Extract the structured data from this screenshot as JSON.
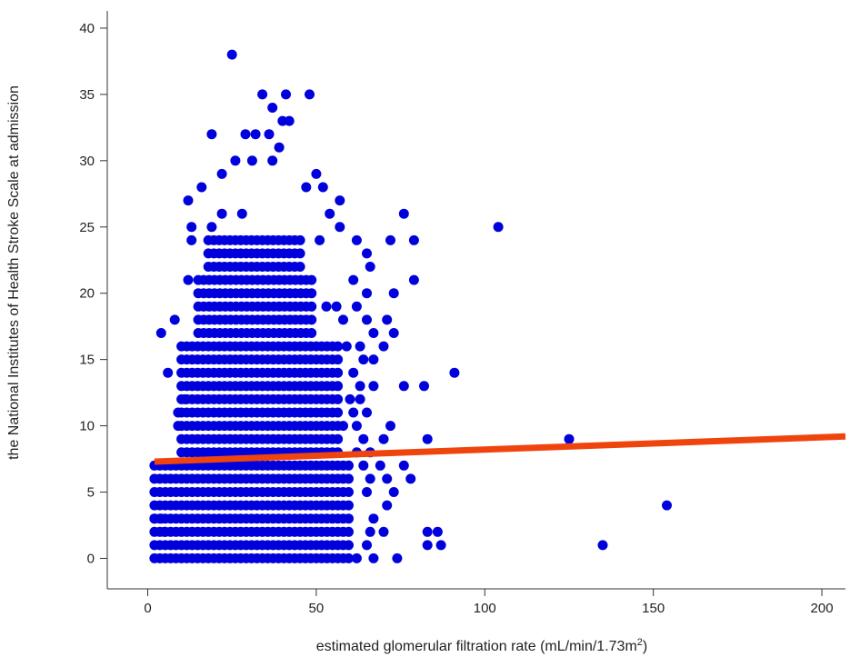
{
  "chart_data": {
    "type": "scatter",
    "title": "",
    "xlabel_main": "estimated glomerular filtration rate (mL/min/1.73m",
    "xlabel_sup": "2",
    "xlabel_tail": ")",
    "ylabel": "the National Institutes of Health Stroke Scale at admission",
    "xlim": [
      -12,
      207
    ],
    "ylim": [
      -2.3,
      41.3
    ],
    "xticks": [
      0,
      50,
      100,
      150,
      200
    ],
    "yticks": [
      0,
      5,
      10,
      15,
      20,
      25,
      30,
      35,
      40
    ],
    "grid": false,
    "point_color": "#0000dd",
    "line_color": "#f0440e",
    "dense_band": {
      "columns": [
        {
          "x_min": 2,
          "x_max": 60,
          "y_values": [
            0,
            1,
            2,
            3,
            4,
            5,
            6,
            7
          ]
        },
        {
          "x_min": 10,
          "x_max": 57,
          "y_values": [
            8,
            9,
            10,
            11,
            12,
            13,
            14,
            15,
            16
          ]
        },
        {
          "x_min": 15,
          "x_max": 50,
          "y_values": [
            17,
            18,
            19,
            20,
            21
          ]
        },
        {
          "x_min": 18,
          "x_max": 46,
          "y_values": [
            22,
            23,
            24
          ]
        }
      ],
      "spacing": 1.6
    },
    "points": [
      {
        "x": 25,
        "y": 38
      },
      {
        "x": 34,
        "y": 35
      },
      {
        "x": 41,
        "y": 35
      },
      {
        "x": 48,
        "y": 35
      },
      {
        "x": 37,
        "y": 34
      },
      {
        "x": 40,
        "y": 33
      },
      {
        "x": 42,
        "y": 33
      },
      {
        "x": 19,
        "y": 32
      },
      {
        "x": 29,
        "y": 32
      },
      {
        "x": 32,
        "y": 32
      },
      {
        "x": 36,
        "y": 32
      },
      {
        "x": 39,
        "y": 31
      },
      {
        "x": 26,
        "y": 30
      },
      {
        "x": 31,
        "y": 30
      },
      {
        "x": 37,
        "y": 30
      },
      {
        "x": 50,
        "y": 29
      },
      {
        "x": 22,
        "y": 29
      },
      {
        "x": 16,
        "y": 28
      },
      {
        "x": 47,
        "y": 28
      },
      {
        "x": 52,
        "y": 28
      },
      {
        "x": 12,
        "y": 27
      },
      {
        "x": 57,
        "y": 27
      },
      {
        "x": 22,
        "y": 26
      },
      {
        "x": 28,
        "y": 26
      },
      {
        "x": 54,
        "y": 26
      },
      {
        "x": 76,
        "y": 26
      },
      {
        "x": 13,
        "y": 25
      },
      {
        "x": 19,
        "y": 25
      },
      {
        "x": 57,
        "y": 25
      },
      {
        "x": 62,
        "y": 24
      },
      {
        "x": 72,
        "y": 24
      },
      {
        "x": 79,
        "y": 24
      },
      {
        "x": 51,
        "y": 24
      },
      {
        "x": 13,
        "y": 24
      },
      {
        "x": 65,
        "y": 23
      },
      {
        "x": 66,
        "y": 22
      },
      {
        "x": 61,
        "y": 21
      },
      {
        "x": 12,
        "y": 21
      },
      {
        "x": 79,
        "y": 21
      },
      {
        "x": 65,
        "y": 20
      },
      {
        "x": 73,
        "y": 20
      },
      {
        "x": 53,
        "y": 19
      },
      {
        "x": 56,
        "y": 19
      },
      {
        "x": 62,
        "y": 19
      },
      {
        "x": 71,
        "y": 18
      },
      {
        "x": 8,
        "y": 18
      },
      {
        "x": 58,
        "y": 18
      },
      {
        "x": 65,
        "y": 18
      },
      {
        "x": 4,
        "y": 17
      },
      {
        "x": 67,
        "y": 17
      },
      {
        "x": 73,
        "y": 17
      },
      {
        "x": 59,
        "y": 16
      },
      {
        "x": 70,
        "y": 16
      },
      {
        "x": 63,
        "y": 16
      },
      {
        "x": 64,
        "y": 15
      },
      {
        "x": 67,
        "y": 15
      },
      {
        "x": 61,
        "y": 14
      },
      {
        "x": 6,
        "y": 14
      },
      {
        "x": 91,
        "y": 14
      },
      {
        "x": 63,
        "y": 13
      },
      {
        "x": 67,
        "y": 13
      },
      {
        "x": 76,
        "y": 13
      },
      {
        "x": 82,
        "y": 13
      },
      {
        "x": 11,
        "y": 12
      },
      {
        "x": 60,
        "y": 12
      },
      {
        "x": 63,
        "y": 12
      },
      {
        "x": 9,
        "y": 11
      },
      {
        "x": 61,
        "y": 11
      },
      {
        "x": 65,
        "y": 11
      },
      {
        "x": 9,
        "y": 10
      },
      {
        "x": 58,
        "y": 10
      },
      {
        "x": 62,
        "y": 10
      },
      {
        "x": 72,
        "y": 10
      },
      {
        "x": 83,
        "y": 9
      },
      {
        "x": 125,
        "y": 9
      },
      {
        "x": 64,
        "y": 9
      },
      {
        "x": 70,
        "y": 9
      },
      {
        "x": 62,
        "y": 8
      },
      {
        "x": 66,
        "y": 8
      },
      {
        "x": 64,
        "y": 7
      },
      {
        "x": 69,
        "y": 7
      },
      {
        "x": 76,
        "y": 7
      },
      {
        "x": 66,
        "y": 6
      },
      {
        "x": 71,
        "y": 6
      },
      {
        "x": 78,
        "y": 6
      },
      {
        "x": 65,
        "y": 5
      },
      {
        "x": 73,
        "y": 5
      },
      {
        "x": 71,
        "y": 4
      },
      {
        "x": 154,
        "y": 4
      },
      {
        "x": 67,
        "y": 3
      },
      {
        "x": 4,
        "y": 3
      },
      {
        "x": 2,
        "y": 3
      },
      {
        "x": 66,
        "y": 2
      },
      {
        "x": 70,
        "y": 2
      },
      {
        "x": 83,
        "y": 2
      },
      {
        "x": 86,
        "y": 2
      },
      {
        "x": 83,
        "y": 1
      },
      {
        "x": 87,
        "y": 1
      },
      {
        "x": 135,
        "y": 1
      },
      {
        "x": 5,
        "y": 2
      },
      {
        "x": 65,
        "y": 1
      },
      {
        "x": 62,
        "y": 0
      },
      {
        "x": 67,
        "y": 0
      },
      {
        "x": 74,
        "y": 0
      },
      {
        "x": 104,
        "y": 25
      }
    ],
    "regression_line": {
      "x": [
        2,
        207
      ],
      "y": [
        7.3,
        9.2
      ]
    }
  }
}
